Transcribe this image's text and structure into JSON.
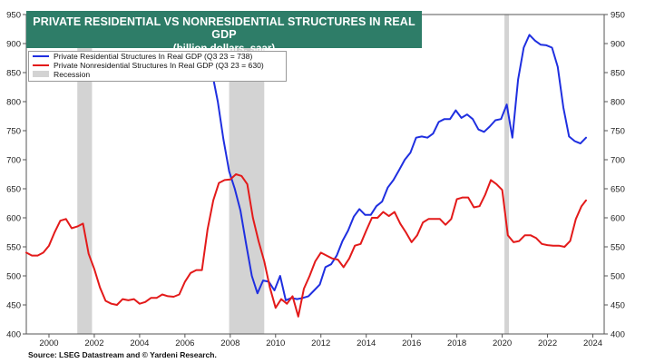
{
  "chart_data": {
    "type": "line",
    "title": "PRIVATE RESIDENTIAL VS NONRESIDENTIAL STRUCTURES  IN REAL GDP",
    "subtitle": "(billion dollars, saar)",
    "xlim": [
      1999,
      2024.5
    ],
    "ylim": [
      400,
      950
    ],
    "x_ticks": [
      "2000",
      "2002",
      "2004",
      "2006",
      "2008",
      "2010",
      "2012",
      "2014",
      "2016",
      "2018",
      "2020",
      "2022",
      "2024"
    ],
    "y_ticks": [
      "400",
      "450",
      "500",
      "550",
      "600",
      "650",
      "700",
      "750",
      "800",
      "850",
      "900",
      "950"
    ],
    "legend_position": "top-left",
    "recessions": [
      {
        "start": 2001.25,
        "end": 2001.9
      },
      {
        "start": 2007.95,
        "end": 2009.5
      },
      {
        "start": 2020.1,
        "end": 2020.3
      }
    ],
    "recession_color": "#d3d3d3",
    "series": [
      {
        "name": "Private Residential Structures In Real GDP (Q3 23 = 738)",
        "color": "#1f2fe0",
        "x": [
          2007.2,
          2007.45,
          2007.7,
          2007.95,
          2008.2,
          2008.45,
          2008.7,
          2008.95,
          2009.2,
          2009.45,
          2009.7,
          2009.95,
          2010.2,
          2010.45,
          2010.7,
          2010.95,
          2011.2,
          2011.45,
          2011.7,
          2011.95,
          2012.2,
          2012.45,
          2012.7,
          2012.95,
          2013.2,
          2013.45,
          2013.7,
          2013.95,
          2014.2,
          2014.45,
          2014.7,
          2014.95,
          2015.2,
          2015.45,
          2015.7,
          2015.95,
          2016.2,
          2016.45,
          2016.7,
          2016.95,
          2017.2,
          2017.45,
          2017.7,
          2017.95,
          2018.2,
          2018.45,
          2018.7,
          2018.95,
          2019.2,
          2019.45,
          2019.7,
          2019.95,
          2020.2,
          2020.45,
          2020.7,
          2020.95,
          2021.2,
          2021.45,
          2021.7,
          2021.95,
          2022.2,
          2022.45,
          2022.7,
          2022.95,
          2023.2,
          2023.45,
          2023.7
        ],
        "values": [
          850,
          800,
          735,
          680,
          650,
          612,
          555,
          500,
          470,
          492,
          490,
          475,
          500,
          458,
          462,
          460,
          462,
          465,
          475,
          485,
          515,
          520,
          535,
          560,
          578,
          602,
          615,
          605,
          605,
          620,
          628,
          652,
          665,
          682,
          700,
          712,
          738,
          740,
          738,
          745,
          765,
          770,
          770,
          785,
          772,
          778,
          770,
          752,
          748,
          757,
          768,
          770,
          795,
          738,
          838,
          893,
          915,
          905,
          898,
          897,
          893,
          860,
          790,
          740,
          732,
          728,
          738
        ]
      },
      {
        "name": "Private Nonresidential Structures In Real GDP (Q3 23 = 630)",
        "color": "#e31a1a",
        "x": [
          1999.0,
          1999.25,
          1999.5,
          1999.75,
          2000.0,
          2000.25,
          2000.5,
          2000.75,
          2001.0,
          2001.25,
          2001.5,
          2001.75,
          2002.0,
          2002.25,
          2002.5,
          2002.75,
          2003.0,
          2003.25,
          2003.5,
          2003.75,
          2004.0,
          2004.25,
          2004.5,
          2004.75,
          2005.0,
          2005.25,
          2005.5,
          2005.75,
          2006.0,
          2006.25,
          2006.5,
          2006.75,
          2007.0,
          2007.25,
          2007.5,
          2007.75,
          2008.0,
          2008.25,
          2008.5,
          2008.75,
          2009.0,
          2009.25,
          2009.5,
          2009.75,
          2010.0,
          2010.25,
          2010.5,
          2010.75,
          2011.0,
          2011.25,
          2011.5,
          2011.75,
          2012.0,
          2012.25,
          2012.5,
          2012.75,
          2013.0,
          2013.25,
          2013.5,
          2013.75,
          2014.0,
          2014.25,
          2014.5,
          2014.75,
          2015.0,
          2015.25,
          2015.5,
          2015.75,
          2016.0,
          2016.25,
          2016.5,
          2016.75,
          2017.0,
          2017.25,
          2017.5,
          2017.75,
          2018.0,
          2018.25,
          2018.5,
          2018.75,
          2019.0,
          2019.25,
          2019.5,
          2019.75,
          2020.0,
          2020.25,
          2020.5,
          2020.75,
          2021.0,
          2021.25,
          2021.5,
          2021.75,
          2022.0,
          2022.25,
          2022.5,
          2022.75,
          2023.0,
          2023.25,
          2023.5,
          2023.7
        ],
        "values": [
          540,
          535,
          535,
          540,
          552,
          575,
          595,
          598,
          582,
          585,
          590,
          538,
          512,
          480,
          457,
          452,
          450,
          460,
          458,
          460,
          452,
          455,
          462,
          462,
          468,
          465,
          464,
          468,
          490,
          505,
          510,
          510,
          580,
          630,
          660,
          665,
          666,
          675,
          672,
          658,
          600,
          560,
          525,
          480,
          445,
          460,
          452,
          465,
          430,
          478,
          500,
          525,
          540,
          535,
          530,
          528,
          515,
          530,
          552,
          555,
          578,
          600,
          600,
          610,
          603,
          610,
          590,
          575,
          558,
          570,
          592,
          598,
          598,
          598,
          588,
          598,
          632,
          635,
          635,
          618,
          620,
          640,
          665,
          658,
          648,
          570,
          558,
          560,
          570,
          570,
          565,
          555,
          553,
          552,
          552,
          550,
          560,
          598,
          620,
          630
        ]
      }
    ],
    "legend": [
      "Private Residential Structures In Real GDP (Q3 23 = 738)",
      "Private Nonresidential Structures In Real GDP (Q3 23 = 630)",
      "Recession"
    ],
    "source": "Source: LSEG Datastream and © Yardeni Research."
  }
}
